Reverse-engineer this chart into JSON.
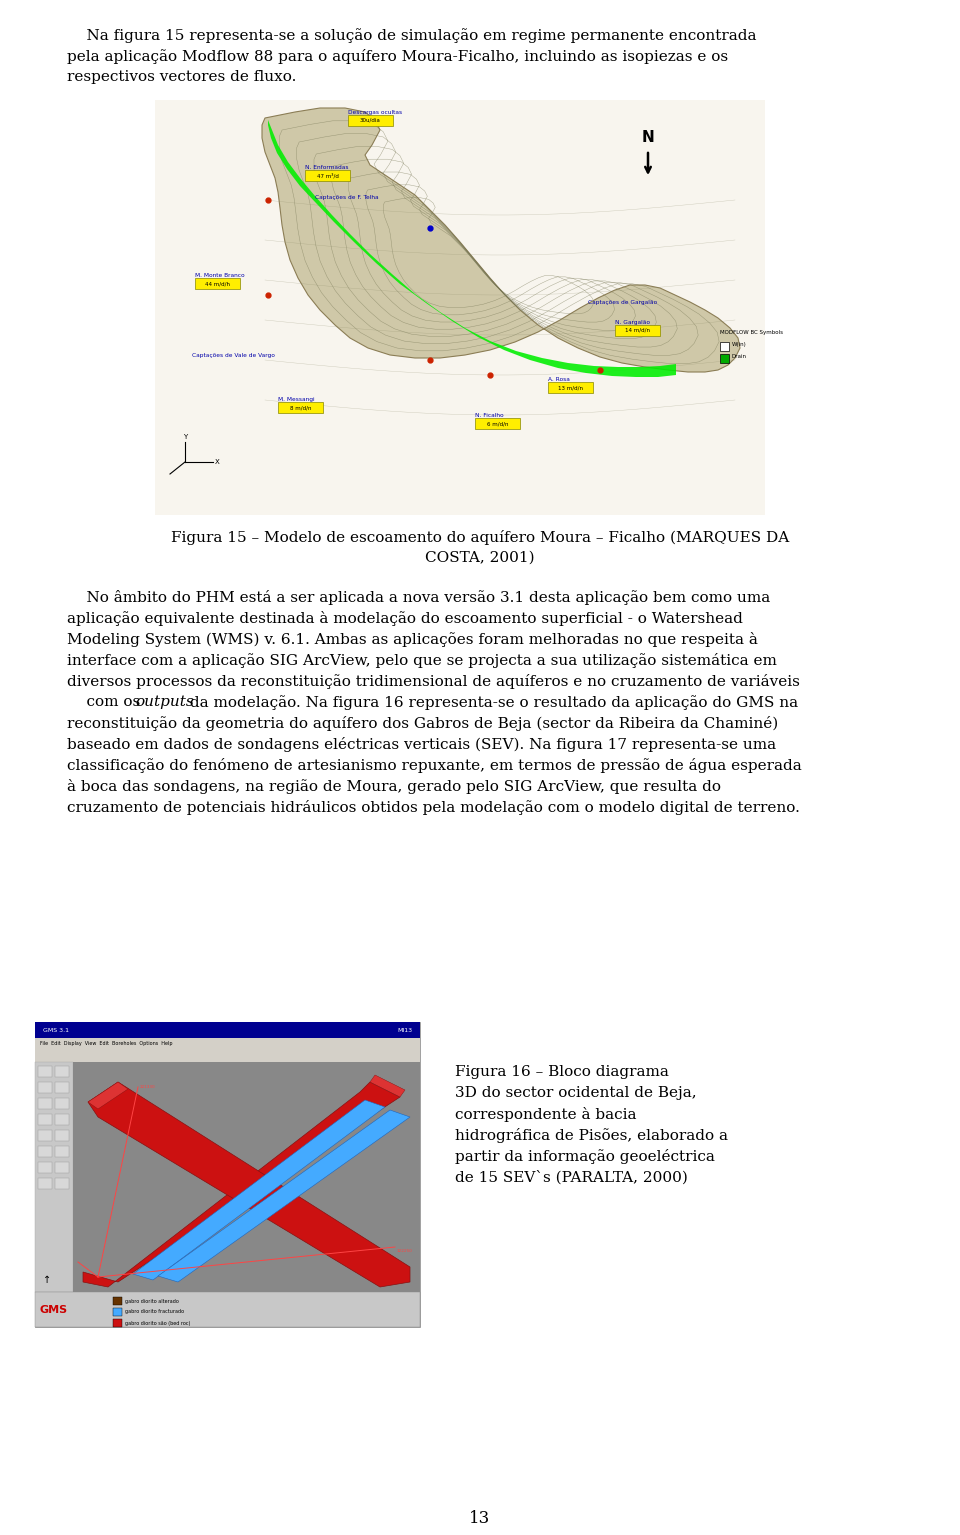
{
  "page_width": 9.6,
  "page_height": 15.35,
  "bg_color": "#ffffff",
  "font_size_body": 11.0,
  "p1_lines": [
    "    Na figura 15 representa-se a solução de simulação em regime permanente encontrada",
    "pela aplicação Modflow 88 para o aquífero Moura-Ficalho, incluindo as isopiezas e os",
    "respectivos vectores de fluxo."
  ],
  "fig15_caption_line1": "Figura 15 – Modelo de escoamento do aquífero Moura – Ficalho (MARQUES DA",
  "fig15_caption_line2": "COSTA, 2001)",
  "p2_lines": [
    "    No âmbito do PHM está a ser aplicada a nova versão 3.1 desta aplicação bem como uma",
    "aplicação equivalente destinada à modelação do escoamento superficial - o Watershead",
    "Modeling System (WMS) v. 6.1. Ambas as aplicações foram melhoradas no que respeita à",
    "interface com a aplicação SIG ArcView, pelo que se projecta a sua utilização sistemática em",
    "diversos processos da reconstituição tridimensional de aquíferos e no cruzamento de variáveis",
    "com os ITALIC_outputs da modelação. Na figura 16 representa-se o resultado da aplicação do GMS na",
    "reconstituição da geometria do aquífero dos Gabros de Beja (sector da Ribeira da Chaminé)",
    "baseado em dados de sondagens eléctricas verticais (SEV). Na figura 17 representa-se uma",
    "classificação do fenómeno de artesianismo repuxante, em termos de pressão de água esperada",
    "à boca das sondagens, na região de Moura, gerado pelo SIG ArcView, que resulta do",
    "cruzamento de potenciais hidráulicos obtidos pela modelação com o modelo digital de terreno."
  ],
  "fig16_caption_lines": [
    "Figura 16 – Bloco diagrama",
    "3D do sector ocidental de Beja,",
    "correspondente à bacia",
    "hidrográfica de Pisões, elaborado a",
    "partir da informação geoeléctrica",
    "de 15 SEV`s (PARALTA, 2000)"
  ],
  "page_number": "13"
}
